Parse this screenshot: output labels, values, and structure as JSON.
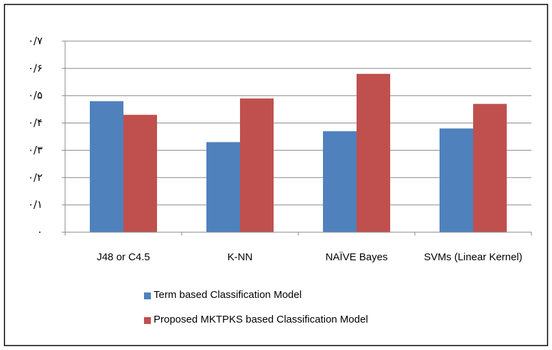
{
  "chart_data": {
    "type": "bar",
    "categories": [
      "J48 or C4.5",
      "K-NN",
      "NAÏVE Bayes",
      "SVMs (Linear Kernel)"
    ],
    "series": [
      {
        "name": "Term based Classification Model",
        "color": "#4f81bd",
        "values": [
          0.48,
          0.33,
          0.37,
          0.38
        ]
      },
      {
        "name": "Proposed MKTPKS based Classification Model",
        "color": "#c0504d",
        "values": [
          0.43,
          0.49,
          0.58,
          0.47
        ]
      }
    ],
    "ylim": [
      0,
      0.7
    ],
    "yticks": [
      {
        "value": 0,
        "label": "۰"
      },
      {
        "value": 0.1,
        "label": "۰/۱"
      },
      {
        "value": 0.2,
        "label": "۰/۲"
      },
      {
        "value": 0.3,
        "label": "۰/۳"
      },
      {
        "value": 0.4,
        "label": "۰/۴"
      },
      {
        "value": 0.5,
        "label": "۰/۵"
      },
      {
        "value": 0.6,
        "label": "۰/۶"
      },
      {
        "value": 0.7,
        "label": "۰/۷"
      }
    ],
    "grid": true,
    "legend": "bottom"
  }
}
